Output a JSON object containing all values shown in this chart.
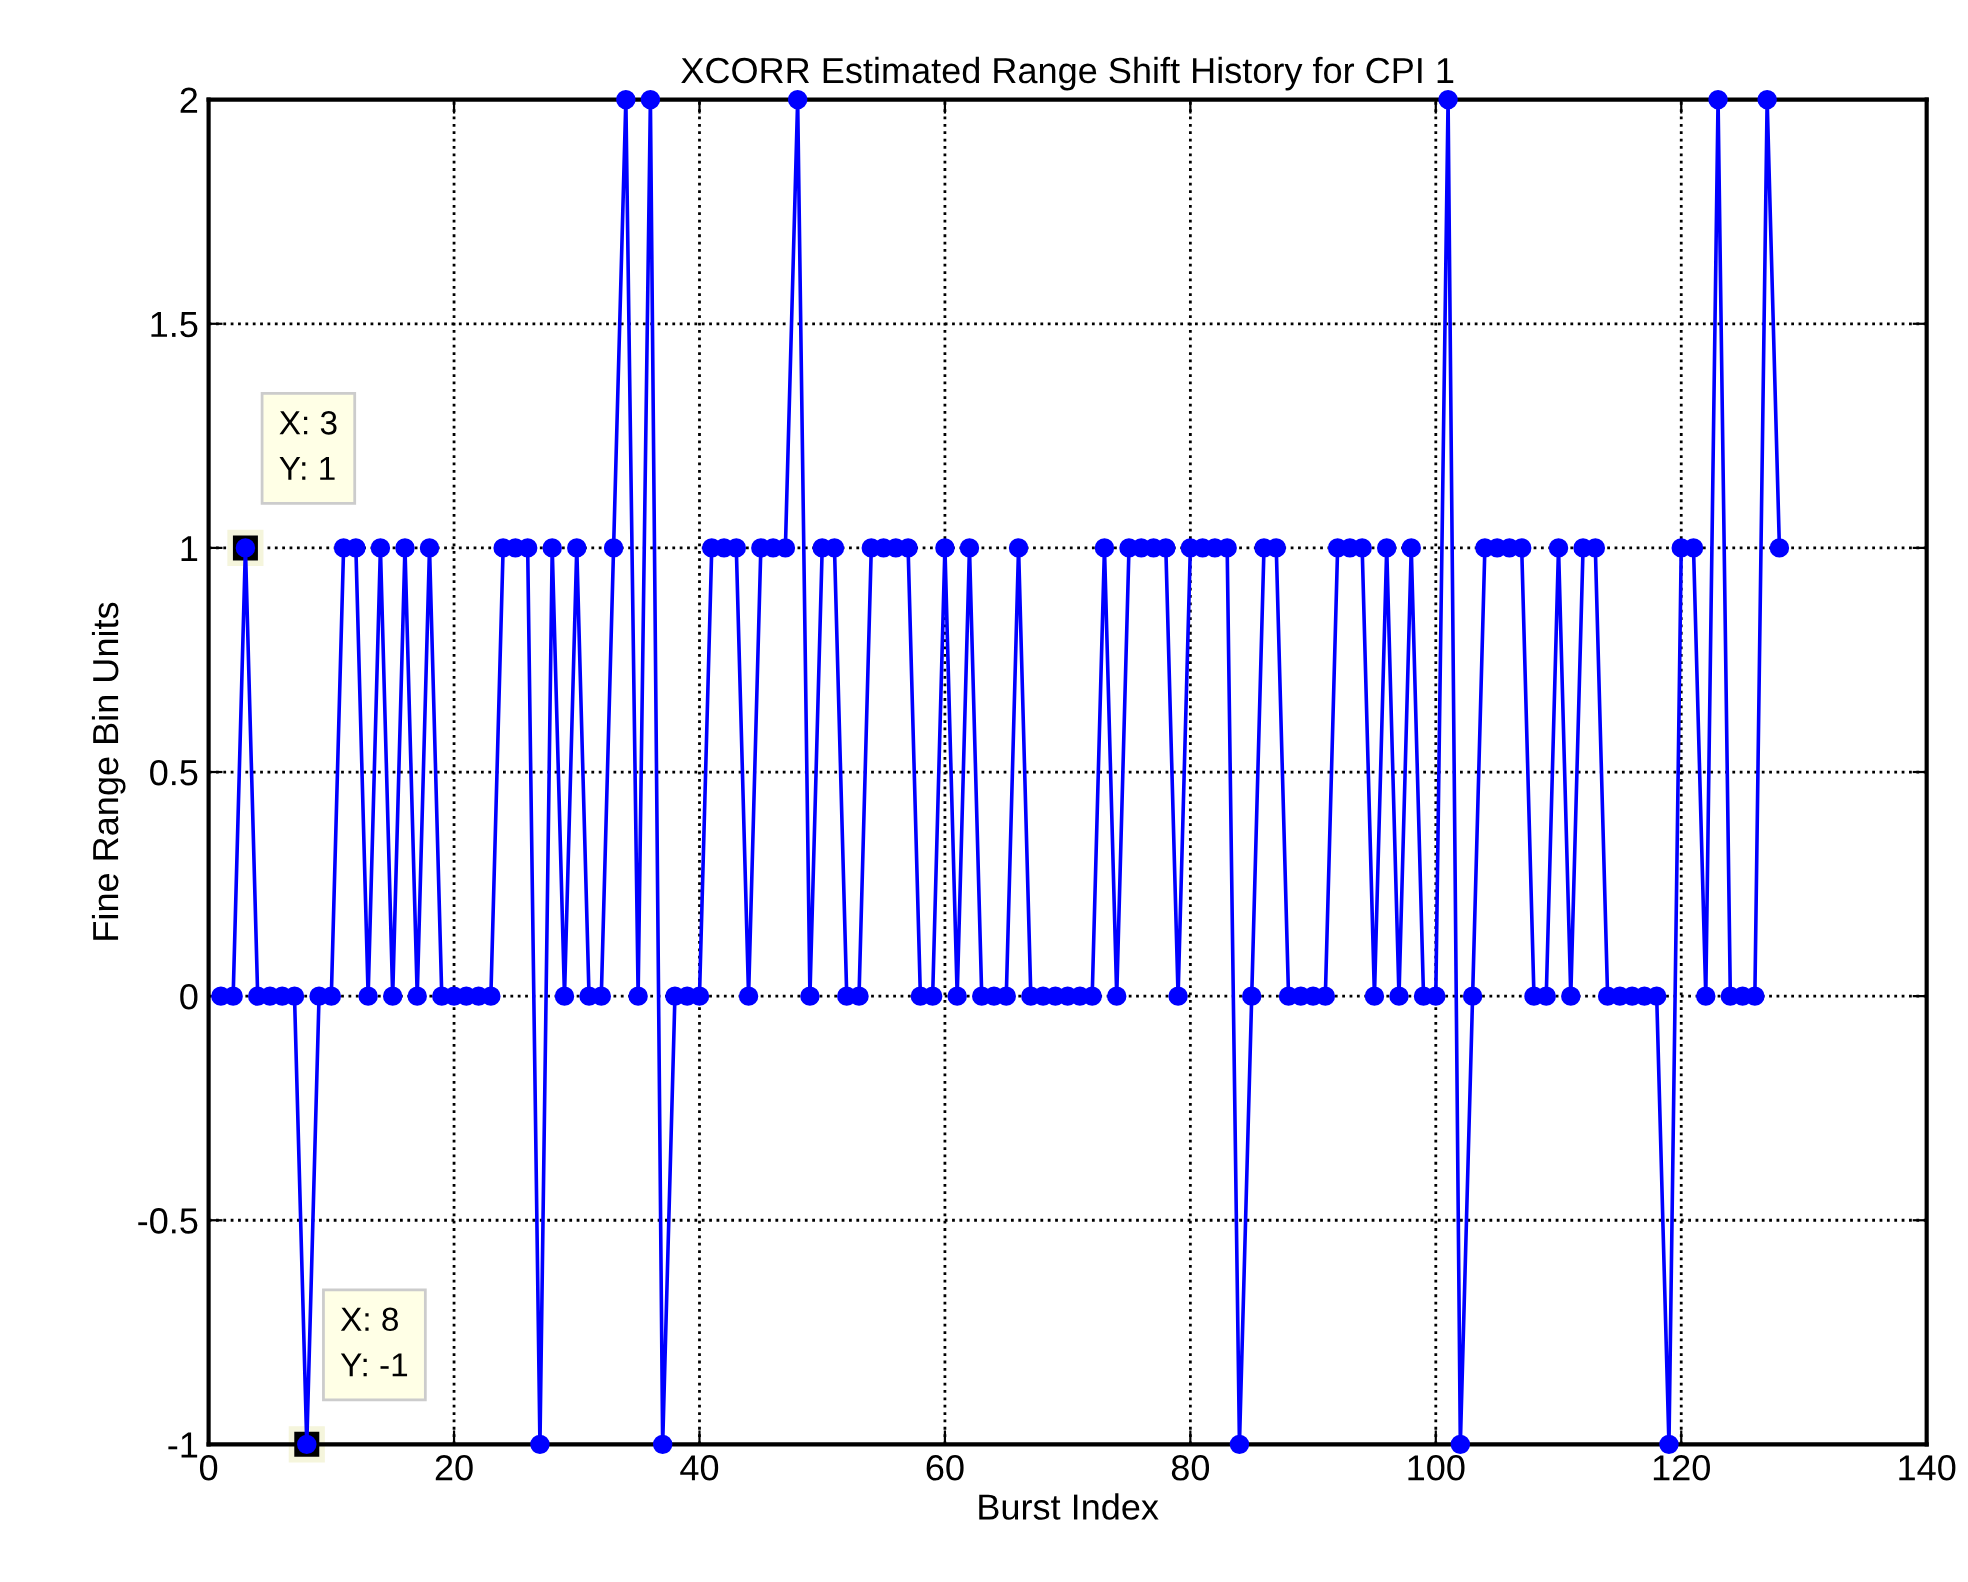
{
  "chart_data": {
    "type": "line",
    "title": "XCORR Estimated Range Shift History for CPI 1",
    "xlabel": "Burst Index",
    "ylabel": "Fine Range Bin Units",
    "x": [
      1,
      2,
      3,
      4,
      5,
      6,
      7,
      8,
      9,
      10,
      11,
      12,
      13,
      14,
      15,
      16,
      17,
      18,
      19,
      20,
      21,
      22,
      23,
      24,
      25,
      26,
      27,
      28,
      29,
      30,
      31,
      32,
      33,
      34,
      35,
      36,
      37,
      38,
      39,
      40,
      41,
      42,
      43,
      44,
      45,
      46,
      47,
      48,
      49,
      50,
      51,
      52,
      53,
      54,
      55,
      56,
      57,
      58,
      59,
      60,
      61,
      62,
      63,
      64,
      65,
      66,
      67,
      68,
      69,
      70,
      71,
      72,
      73,
      74,
      75,
      76,
      77,
      78,
      79,
      80,
      81,
      82,
      83,
      84,
      85,
      86,
      87,
      88,
      89,
      90,
      91,
      92,
      93,
      94,
      95,
      96,
      97,
      98,
      99,
      100,
      101,
      102,
      103,
      104,
      105,
      106,
      107,
      108,
      109,
      110,
      111,
      112,
      113,
      114,
      115,
      116,
      117,
      118,
      119,
      120,
      121,
      122,
      123,
      124,
      125,
      126,
      127,
      128
    ],
    "series": [
      {
        "color": "#0000ff",
        "values": [
          0,
          0,
          1,
          0,
          0,
          0,
          0,
          -1,
          0,
          0,
          1,
          1,
          0,
          1,
          0,
          1,
          0,
          1,
          0,
          0,
          0,
          0,
          0,
          1,
          1,
          1,
          -1,
          1,
          0,
          1,
          0,
          0,
          1,
          2,
          0,
          2,
          -1,
          0,
          0,
          0,
          1,
          1,
          1,
          0,
          1,
          1,
          1,
          2,
          0,
          1,
          1,
          0,
          0,
          1,
          1,
          1,
          1,
          0,
          0,
          1,
          0,
          1,
          0,
          0,
          0,
          1,
          0,
          0,
          0,
          0,
          0,
          0,
          1,
          0,
          1,
          1,
          1,
          1,
          0,
          1,
          1,
          1,
          1,
          -1,
          0,
          1,
          1,
          0,
          0,
          0,
          0,
          1,
          1,
          1,
          0,
          1,
          0,
          1,
          0,
          0,
          2,
          -1,
          0,
          1,
          1,
          1,
          1,
          0,
          0,
          1,
          0,
          1,
          1,
          0,
          0,
          0,
          0,
          0,
          -1,
          1,
          1,
          0,
          2,
          0,
          0,
          0,
          2,
          1
        ]
      }
    ],
    "marker": "circle",
    "line_style": "solid",
    "xlim": [
      0,
      140
    ],
    "xticks": [
      0,
      20,
      40,
      60,
      80,
      100,
      120,
      140
    ],
    "ylim": [
      -1,
      2
    ],
    "yticks": [
      -1,
      -0.5,
      0,
      0.5,
      1,
      1.5,
      2
    ],
    "grid": true,
    "annotations": [
      {
        "text": "X: 3\nY: 1",
        "x": 3,
        "y": 1
      },
      {
        "text": "X: 8\nY: -1",
        "x": 8,
        "y": -1
      }
    ]
  }
}
